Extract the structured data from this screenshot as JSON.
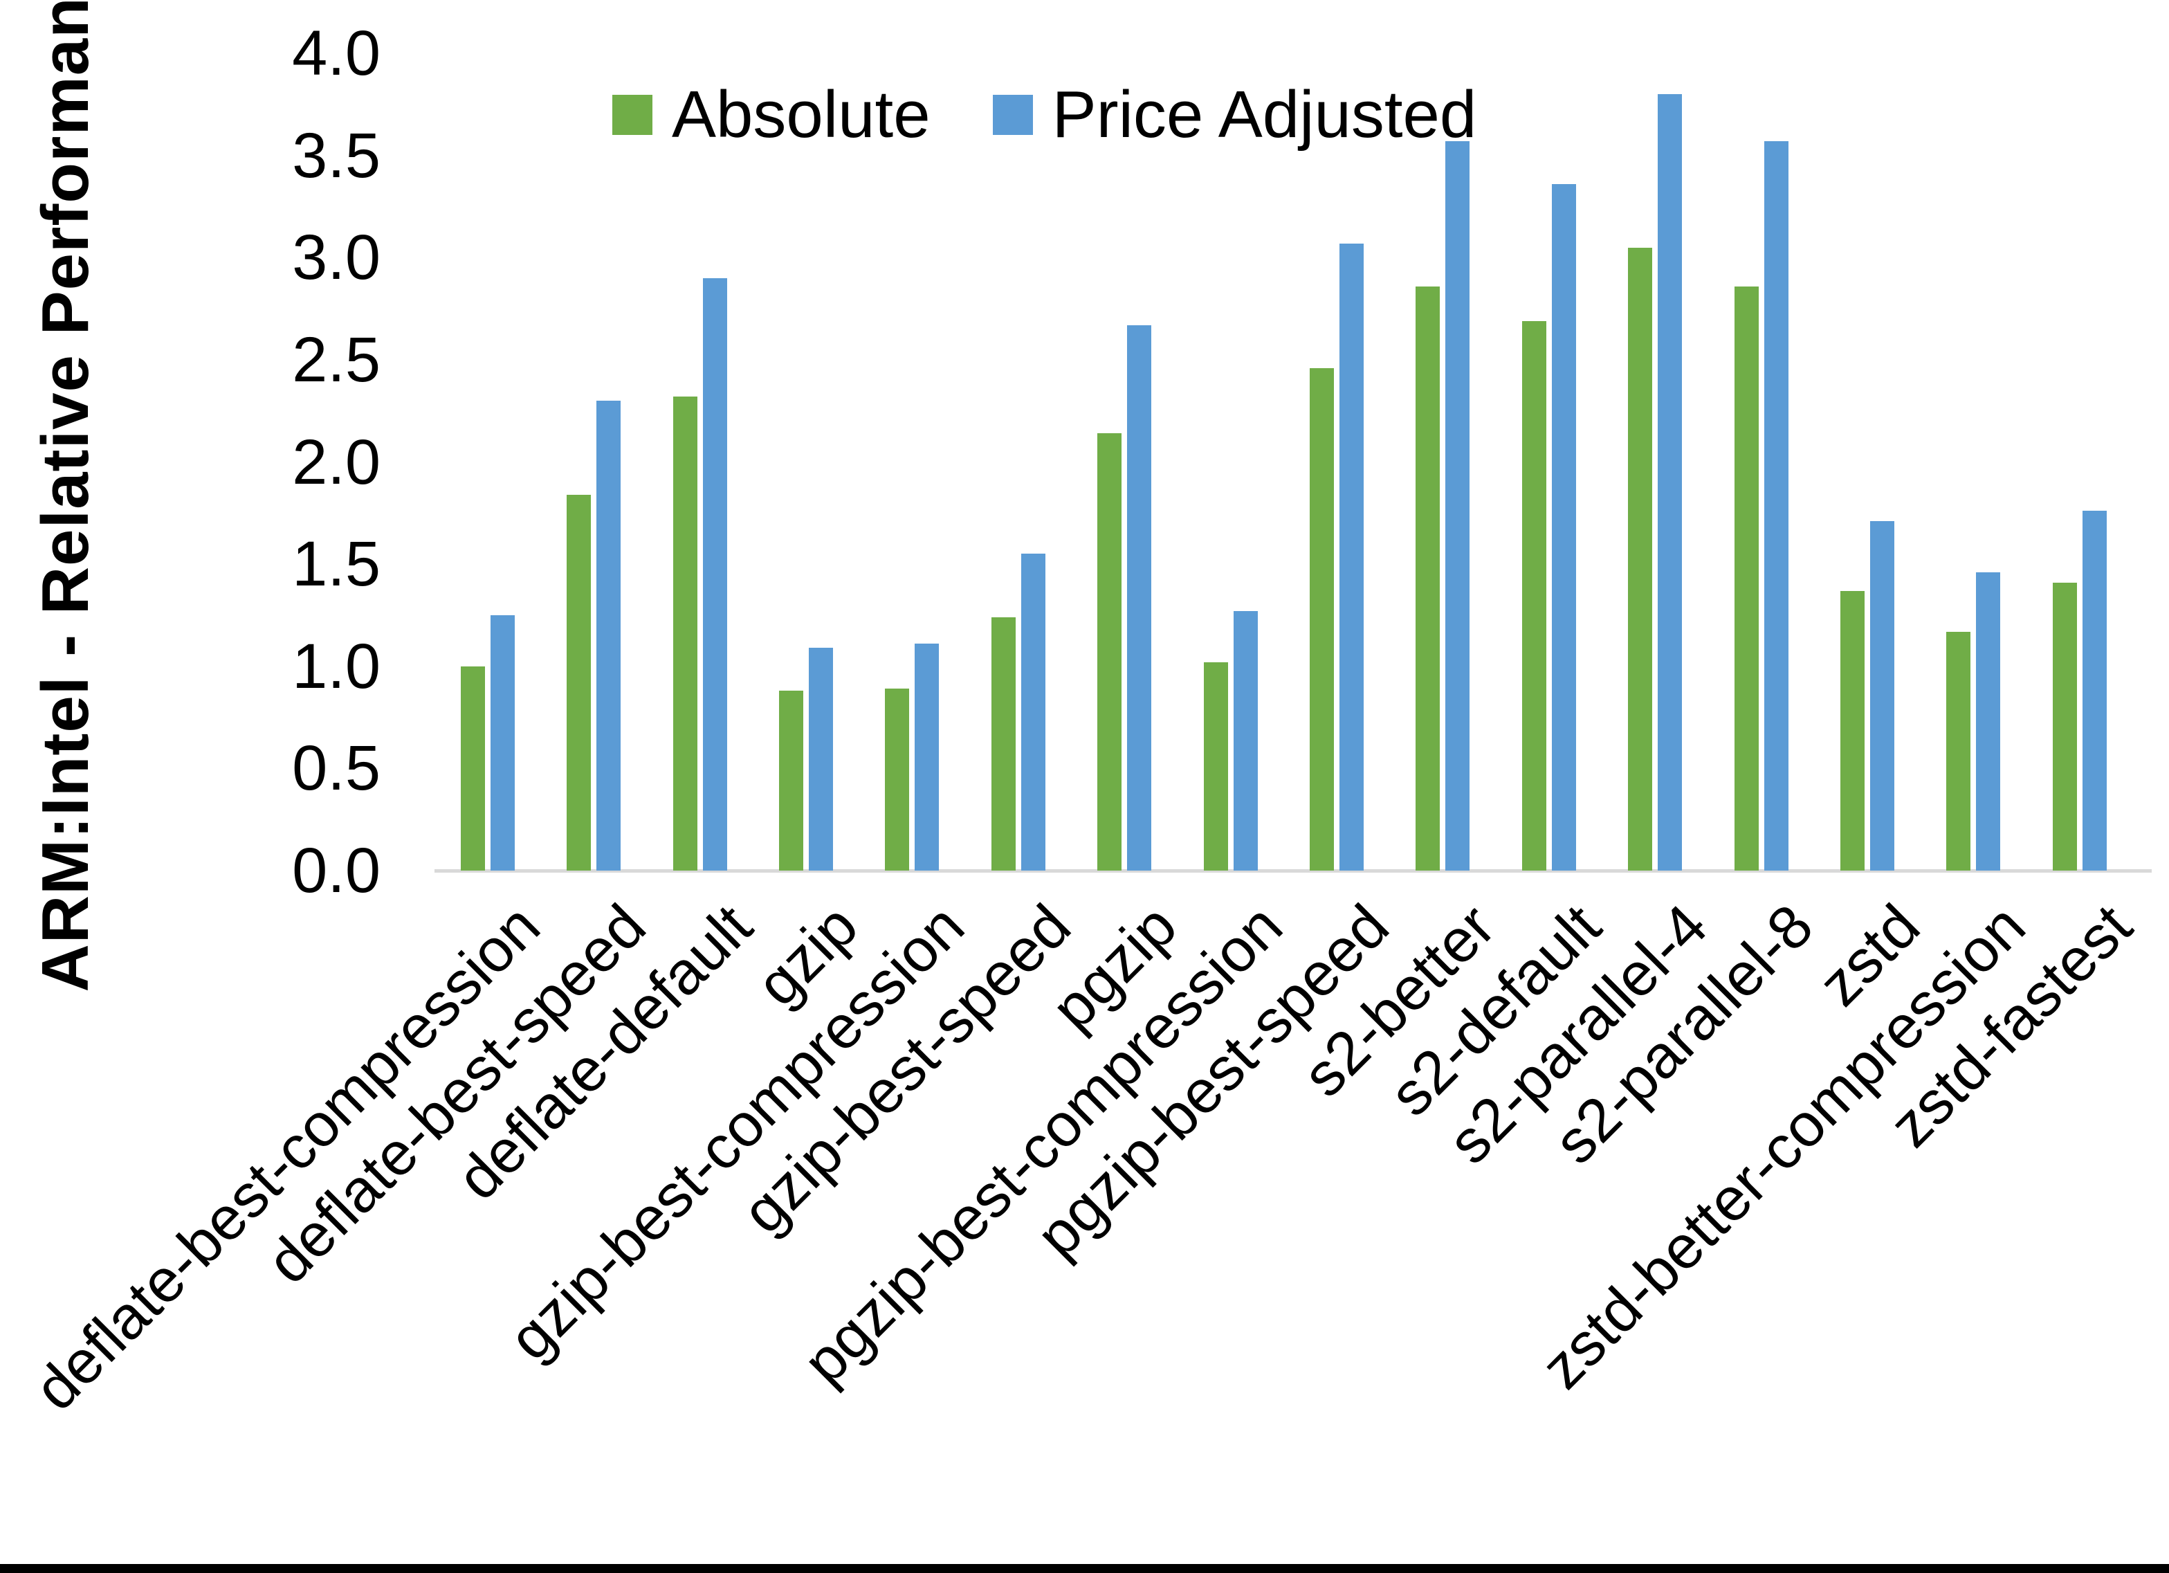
{
  "figure": {
    "background": "#ffffff",
    "bottom_border_color": "#000000",
    "axis_line_color": "#d9d9d9"
  },
  "chart_data": {
    "type": "bar",
    "title": "",
    "xlabel": "",
    "ylabel": "ARM:Intel - Relative Performance",
    "ylim": [
      0,
      4
    ],
    "ytick_step": 0.5,
    "yticks": [
      "0.0",
      "0.5",
      "1.0",
      "1.5",
      "2.0",
      "2.5",
      "3.0",
      "3.5",
      "4.0"
    ],
    "grid": false,
    "legend_position": "top-center",
    "categories": [
      "deflate-best-compression",
      "deflate-best-speed",
      "deflate-default",
      "gzip",
      "gzip-best-compression",
      "gzip-best-speed",
      "pgzip",
      "pgzip-best-compression",
      "pgzip-best-speed",
      "s2-better",
      "s2-default",
      "s2-parallel-4",
      "s2-parallel-8",
      "zstd",
      "zstd-better-compression",
      "zstd-fastest"
    ],
    "series": [
      {
        "name": "Absolute",
        "color": "#70AD47",
        "values": [
          1.0,
          1.84,
          2.32,
          0.88,
          0.89,
          1.24,
          2.14,
          1.02,
          2.46,
          2.86,
          2.69,
          3.05,
          2.86,
          1.37,
          1.17,
          1.41
        ]
      },
      {
        "name": "Price Adjusted",
        "color": "#5B9BD5",
        "values": [
          1.25,
          2.3,
          2.9,
          1.09,
          1.11,
          1.55,
          2.67,
          1.27,
          3.07,
          3.57,
          3.36,
          3.8,
          3.57,
          1.71,
          1.46,
          1.76
        ]
      }
    ]
  }
}
